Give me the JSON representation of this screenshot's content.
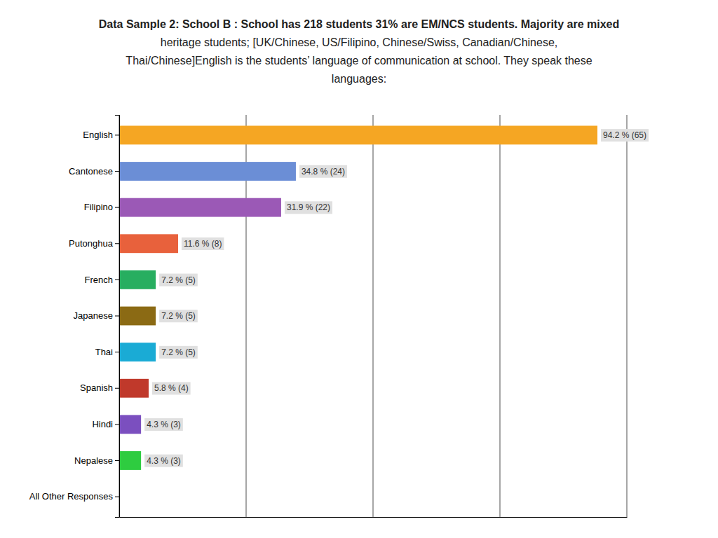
{
  "chart_data": {
    "type": "bar",
    "orientation": "horizontal",
    "title": [
      "Data Sample 2: School B : School has 218 students 31% are EM/NCS students. Majority are mixed",
      "heritage students; [UK/Chinese, US/Filipino, Chinese/Swiss, Canadian/Chinese,",
      "Thai/Chinese]English is the students’ language of communication at school. They speak these",
      "languages:"
    ],
    "categories": [
      "English",
      "Cantonese",
      "Filipino",
      "Putonghua",
      "French",
      "Japanese",
      "Thai",
      "Spanish",
      "Hindi",
      "Nepalese",
      "All Other Responses"
    ],
    "values": [
      94.2,
      34.8,
      31.9,
      11.6,
      7.2,
      7.2,
      7.2,
      5.8,
      4.3,
      4.3,
      0.0
    ],
    "value_labels": [
      "94.2 % (65)",
      "34.8 % (24)",
      "31.9 % (22)",
      "11.6 % (8)",
      "7.2 % (5)",
      "7.2 % (5)",
      "7.2 % (5)",
      "5.8 % (4)",
      "4.3 % (3)",
      "4.3 % (3)",
      null
    ],
    "data_labels": true,
    "colors": [
      "#F5A623",
      "#6B8ED6",
      "#9B59B6",
      "#E8613C",
      "#27AE60",
      "#8B6A14",
      "#1AABD5",
      "#C0392B",
      "#7B4FBF",
      "#2ECC40",
      "#FFFFFF"
    ],
    "xlim": [
      0,
      100
    ],
    "xticks": [
      0,
      25,
      50,
      75,
      100
    ],
    "grid": true,
    "tick_labels": "y"
  }
}
